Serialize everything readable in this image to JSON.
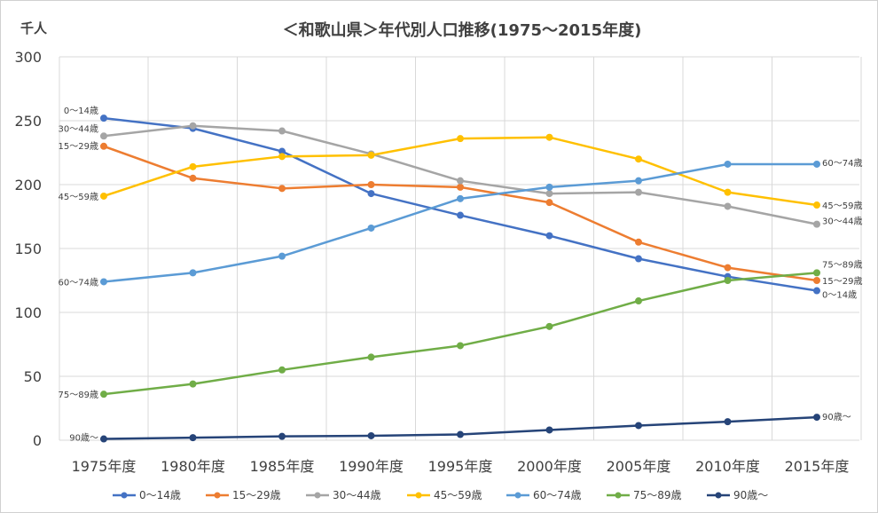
{
  "chart_data": {
    "type": "line",
    "title": "＜和歌山県＞年代別人口推移(1975～2015年度)",
    "unit_label": "千人",
    "categories": [
      "1975年度",
      "1980年度",
      "1985年度",
      "1990年度",
      "1995年度",
      "2000年度",
      "2005年度",
      "2010年度",
      "2015年度"
    ],
    "ylim": [
      0,
      300
    ],
    "yticks": [
      0,
      50,
      100,
      150,
      200,
      250,
      300
    ],
    "grid": true,
    "legend": "bottom",
    "series": [
      {
        "name": "0～14歳",
        "color": "#4472C4",
        "values": [
          252,
          244,
          226,
          193,
          176,
          160,
          142,
          128,
          117
        ],
        "start_label": "0～14歳",
        "end_label": "0～14歳"
      },
      {
        "name": "15～29歳",
        "color": "#ED7D31",
        "values": [
          230,
          205,
          197,
          200,
          198,
          186,
          155,
          135,
          125
        ],
        "start_label": "15～29歳",
        "end_label": "15～29歳"
      },
      {
        "name": "30～44歳",
        "color": "#A5A5A5",
        "values": [
          238,
          246,
          242,
          224,
          203,
          193,
          194,
          183,
          169
        ],
        "start_label": "30～44歳",
        "end_label": "30～44歳"
      },
      {
        "name": "45～59歳",
        "color": "#FFC000",
        "values": [
          191,
          214,
          222,
          223,
          236,
          237,
          220,
          194,
          184
        ],
        "start_label": "45～59歳",
        "end_label": "45～59歳"
      },
      {
        "name": "60～74歳",
        "color": "#5B9BD5",
        "values": [
          124,
          131,
          144,
          166,
          189,
          198,
          203,
          216,
          216
        ],
        "start_label": "60～74歳",
        "end_label": "60～74歳"
      },
      {
        "name": "75～89歳",
        "color": "#70AD47",
        "values": [
          36,
          44,
          55,
          65,
          74,
          89,
          109,
          125,
          131
        ],
        "start_label": "75～89歳",
        "end_label": "75～89歳"
      },
      {
        "name": "90歳～",
        "color": "#264478",
        "values": [
          1,
          2,
          3,
          3.5,
          4.5,
          8,
          11.5,
          14.5,
          18
        ],
        "start_label": "90歳～",
        "end_label": "90歳～"
      }
    ]
  }
}
